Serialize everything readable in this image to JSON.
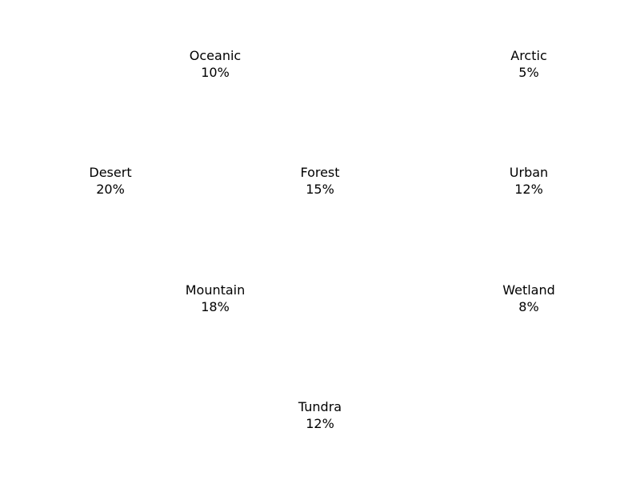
{
  "chart_data": {
    "type": "treemap",
    "title": "",
    "values_unit": "%",
    "items": [
      {
        "label": "Oceanic",
        "value_text": "10%",
        "value": 10
      },
      {
        "label": "Arctic",
        "value_text": "5%",
        "value": 5
      },
      {
        "label": "Desert",
        "value_text": "20%",
        "value": 20
      },
      {
        "label": "Forest",
        "value_text": "15%",
        "value": 15
      },
      {
        "label": "Urban",
        "value_text": "12%",
        "value": 12
      },
      {
        "label": "Mountain",
        "value_text": "18%",
        "value": 18
      },
      {
        "label": "Wetland",
        "value_text": "8%",
        "value": 8
      },
      {
        "label": "Tundra",
        "value_text": "12%",
        "value": 12
      }
    ],
    "background_color": "#ffffff",
    "label_color": "#000000"
  }
}
